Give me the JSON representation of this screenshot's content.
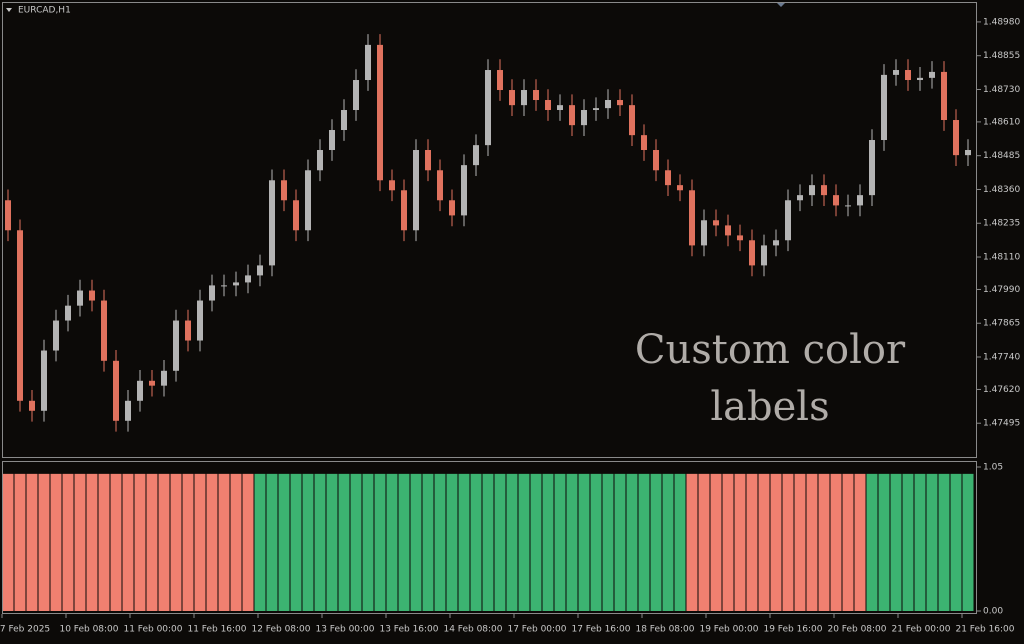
{
  "chart_data": [
    {
      "type": "candlestick",
      "title": "EURCAD,H1",
      "annotation": "Custom color labels",
      "up_color": "#b4b4b4",
      "down_color": "#e0725e",
      "ylim": [
        1.4737,
        1.4905
      ],
      "yticks": [
        {
          "value": 1.4898,
          "label": "1.48980"
        },
        {
          "value": 1.48855,
          "label": "1.48855"
        },
        {
          "value": 1.4873,
          "label": "1.48730"
        },
        {
          "value": 1.4861,
          "label": "1.48610"
        },
        {
          "value": 1.48485,
          "label": "1.48485"
        },
        {
          "value": 1.4836,
          "label": "1.48360"
        },
        {
          "value": 1.48235,
          "label": "1.48235"
        },
        {
          "value": 1.4811,
          "label": "1.48110"
        },
        {
          "value": 1.4799,
          "label": "1.47990"
        },
        {
          "value": 1.47865,
          "label": "1.47865"
        },
        {
          "value": 1.4774,
          "label": "1.47740"
        },
        {
          "value": 1.4762,
          "label": "1.47620"
        },
        {
          "value": 1.47495,
          "label": "1.47495"
        }
      ],
      "x_labels": [
        "7 Feb 2025",
        "10 Feb 08:00",
        "11 Feb 00:00",
        "11 Feb 16:00",
        "12 Feb 08:00",
        "13 Feb 00:00",
        "13 Feb 16:00",
        "14 Feb 08:00",
        "17 Feb 00:00",
        "17 Feb 16:00",
        "18 Feb 08:00",
        "19 Feb 00:00",
        "19 Feb 16:00",
        "20 Feb 08:00",
        "21 Feb 00:00",
        "21 Feb 16:00"
      ],
      "ohlc": [
        [
          1.4832,
          1.4836,
          1.48169,
          1.48209
        ],
        [
          1.48209,
          1.48249,
          1.47538,
          1.47578
        ],
        [
          1.47578,
          1.47618,
          1.47501,
          1.47541
        ],
        [
          1.47541,
          1.47804,
          1.47501,
          1.47764
        ],
        [
          1.47764,
          1.47915,
          1.47724,
          1.47875
        ],
        [
          1.47875,
          1.4797,
          1.47835,
          1.4793
        ],
        [
          1.4793,
          1.48026,
          1.4789,
          1.47986
        ],
        [
          1.47986,
          1.48026,
          1.47909,
          1.47949
        ],
        [
          1.47949,
          1.47989,
          1.47686,
          1.47726
        ],
        [
          1.47726,
          1.47766,
          1.47464,
          1.47504
        ],
        [
          1.47504,
          1.47618,
          1.47464,
          1.47578
        ],
        [
          1.47578,
          1.47692,
          1.47538,
          1.47652
        ],
        [
          1.47652,
          1.47692,
          1.47594,
          1.47634
        ],
        [
          1.47634,
          1.47729,
          1.47594,
          1.47689
        ],
        [
          1.47689,
          1.47915,
          1.47649,
          1.47875
        ],
        [
          1.47875,
          1.47915,
          1.47761,
          1.47801
        ],
        [
          1.47801,
          1.47989,
          1.47761,
          1.47949
        ],
        [
          1.47949,
          1.48045,
          1.47909,
          1.48005
        ],
        [
          1.48005,
          1.48045,
          1.47965,
          1.48005
        ],
        [
          1.48005,
          1.48056,
          1.47965,
          1.48016
        ],
        [
          1.48016,
          1.48082,
          1.47976,
          1.48042
        ],
        [
          1.48042,
          1.48119,
          1.48002,
          1.48079
        ],
        [
          1.48079,
          1.48434,
          1.48039,
          1.48394
        ],
        [
          1.48394,
          1.48434,
          1.4828,
          1.4832
        ],
        [
          1.4832,
          1.4836,
          1.48169,
          1.48209
        ],
        [
          1.48209,
          1.48471,
          1.48169,
          1.48431
        ],
        [
          1.48431,
          1.48546,
          1.48391,
          1.48506
        ],
        [
          1.48506,
          1.4862,
          1.48466,
          1.4858
        ],
        [
          1.4858,
          1.48694,
          1.4854,
          1.48654
        ],
        [
          1.48654,
          1.48805,
          1.48614,
          1.48765
        ],
        [
          1.48765,
          1.48935,
          1.48725,
          1.48895
        ],
        [
          1.48895,
          1.48935,
          1.48354,
          1.48394
        ],
        [
          1.48394,
          1.48434,
          1.48317,
          1.48357
        ],
        [
          1.48357,
          1.48397,
          1.48169,
          1.48209
        ],
        [
          1.48209,
          1.48546,
          1.48169,
          1.48506
        ],
        [
          1.48506,
          1.48546,
          1.48391,
          1.48431
        ],
        [
          1.48431,
          1.48471,
          1.4828,
          1.4832
        ],
        [
          1.4832,
          1.4836,
          1.48224,
          1.48264
        ],
        [
          1.48264,
          1.4849,
          1.48224,
          1.4845
        ],
        [
          1.4845,
          1.48564,
          1.4841,
          1.48524
        ],
        [
          1.48524,
          1.48842,
          1.48484,
          1.48802
        ],
        [
          1.48802,
          1.48842,
          1.48688,
          1.48728
        ],
        [
          1.48728,
          1.48768,
          1.48632,
          1.48672
        ],
        [
          1.48672,
          1.48768,
          1.48632,
          1.48728
        ],
        [
          1.48728,
          1.48768,
          1.48651,
          1.48691
        ],
        [
          1.48691,
          1.48731,
          1.48614,
          1.48654
        ],
        [
          1.48654,
          1.48712,
          1.48614,
          1.48672
        ],
        [
          1.48672,
          1.48712,
          1.48558,
          1.48598
        ],
        [
          1.48598,
          1.48694,
          1.48558,
          1.48654
        ],
        [
          1.48654,
          1.48701,
          1.48614,
          1.48661
        ],
        [
          1.48661,
          1.48731,
          1.48621,
          1.48691
        ],
        [
          1.48691,
          1.48731,
          1.48632,
          1.48672
        ],
        [
          1.48672,
          1.48712,
          1.48521,
          1.48561
        ],
        [
          1.48561,
          1.48601,
          1.48466,
          1.48506
        ],
        [
          1.48506,
          1.48546,
          1.48391,
          1.48431
        ],
        [
          1.48431,
          1.48471,
          1.48336,
          1.48376
        ],
        [
          1.48376,
          1.48416,
          1.48317,
          1.48357
        ],
        [
          1.48357,
          1.48397,
          1.48113,
          1.48153
        ],
        [
          1.48153,
          1.48286,
          1.48113,
          1.48246
        ],
        [
          1.48246,
          1.48286,
          1.48187,
          1.48227
        ],
        [
          1.48227,
          1.48267,
          1.4815,
          1.4819
        ],
        [
          1.4819,
          1.4823,
          1.48132,
          1.48172
        ],
        [
          1.48172,
          1.48212,
          1.48039,
          1.48079
        ],
        [
          1.48079,
          1.48193,
          1.48039,
          1.48153
        ],
        [
          1.48153,
          1.48212,
          1.48113,
          1.48172
        ],
        [
          1.48172,
          1.4836,
          1.48132,
          1.4832
        ],
        [
          1.4832,
          1.48379,
          1.4828,
          1.48339
        ],
        [
          1.48339,
          1.48416,
          1.48299,
          1.48376
        ],
        [
          1.48376,
          1.48416,
          1.48299,
          1.48339
        ],
        [
          1.48339,
          1.48379,
          1.48261,
          1.48301
        ],
        [
          1.48301,
          1.48341,
          1.48261,
          1.48301
        ],
        [
          1.48301,
          1.48379,
          1.48261,
          1.48339
        ],
        [
          1.48339,
          1.48583,
          1.48299,
          1.48543
        ],
        [
          1.48543,
          1.48824,
          1.48503,
          1.48784
        ],
        [
          1.48784,
          1.48842,
          1.48744,
          1.48802
        ],
        [
          1.48802,
          1.48842,
          1.48725,
          1.48765
        ],
        [
          1.48765,
          1.48813,
          1.48725,
          1.48773
        ],
        [
          1.48773,
          1.48835,
          1.48733,
          1.48795
        ],
        [
          1.48795,
          1.48835,
          1.48577,
          1.48617
        ],
        [
          1.48617,
          1.48657,
          1.48447,
          1.48487
        ],
        [
          1.48487,
          1.48546,
          1.48447,
          1.48506
        ]
      ]
    },
    {
      "type": "bar",
      "ylim": [
        0,
        1.05
      ],
      "yticks": [
        1.05,
        {
          "value": 0,
          "label": "0.00"
        }
      ],
      "values": [
        1,
        1,
        1,
        1,
        1,
        1,
        1,
        1,
        1,
        1,
        1,
        1,
        1,
        1,
        1,
        1,
        1,
        1,
        1,
        1,
        1,
        1,
        1,
        1,
        1,
        1,
        1,
        1,
        1,
        1,
        1,
        1,
        1,
        1,
        1,
        1,
        1,
        1,
        1,
        1,
        1,
        1,
        1,
        1,
        1,
        1,
        1,
        1,
        1,
        1,
        1,
        1,
        1,
        1,
        1,
        1,
        1,
        1,
        1,
        1,
        1,
        1,
        1,
        1,
        1,
        1,
        1,
        1,
        1,
        1,
        1,
        1,
        1,
        1,
        1,
        1,
        1,
        1,
        1,
        1,
        1
      ],
      "colors": [
        "#f08070",
        "#f08070",
        "#f08070",
        "#f08070",
        "#f08070",
        "#f08070",
        "#f08070",
        "#f08070",
        "#f08070",
        "#f08070",
        "#f08070",
        "#f08070",
        "#f08070",
        "#f08070",
        "#f08070",
        "#f08070",
        "#f08070",
        "#f08070",
        "#f08070",
        "#f08070",
        "#f08070",
        "#3cb371",
        "#3cb371",
        "#3cb371",
        "#3cb371",
        "#3cb371",
        "#3cb371",
        "#3cb371",
        "#3cb371",
        "#3cb371",
        "#3cb371",
        "#3cb371",
        "#3cb371",
        "#3cb371",
        "#3cb371",
        "#3cb371",
        "#3cb371",
        "#3cb371",
        "#3cb371",
        "#3cb371",
        "#3cb371",
        "#3cb371",
        "#3cb371",
        "#3cb371",
        "#3cb371",
        "#3cb371",
        "#3cb371",
        "#3cb371",
        "#3cb371",
        "#3cb371",
        "#3cb371",
        "#3cb371",
        "#3cb371",
        "#3cb371",
        "#3cb371",
        "#3cb371",
        "#3cb371",
        "#f08070",
        "#f08070",
        "#f08070",
        "#f08070",
        "#f08070",
        "#f08070",
        "#f08070",
        "#f08070",
        "#f08070",
        "#f08070",
        "#f08070",
        "#f08070",
        "#f08070",
        "#f08070",
        "#f08070",
        "#3cb371",
        "#3cb371",
        "#3cb371",
        "#3cb371",
        "#3cb371",
        "#3cb371",
        "#3cb371",
        "#3cb371",
        "#3cb371"
      ]
    }
  ]
}
